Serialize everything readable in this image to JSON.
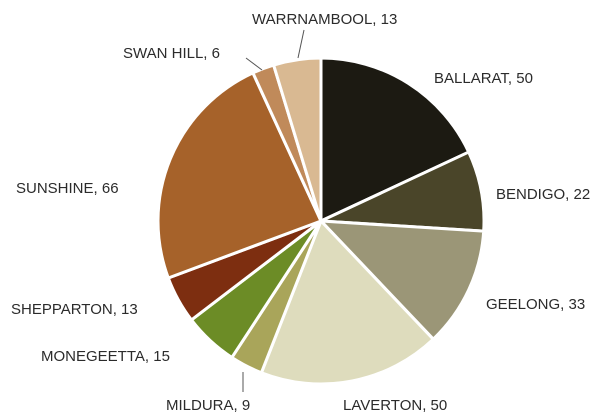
{
  "chart_data": {
    "type": "pie",
    "start_angle_deg": 0,
    "direction": "clockwise",
    "slices": [
      {
        "label": "BALLARAT, 50",
        "category": "BALLARAT",
        "value": 50,
        "color": "#1c1a12"
      },
      {
        "label": "BENDIGO, 22",
        "category": "BENDIGO",
        "value": 22,
        "color": "#4a4529"
      },
      {
        "label": "GEELONG, 33",
        "category": "GEELONG",
        "value": 33,
        "color": "#9b9677"
      },
      {
        "label": "LAVERTON, 50",
        "category": "LAVERTON",
        "value": 50,
        "color": "#dedcbd"
      },
      {
        "label": "MILDURA, 9",
        "category": "MILDURA",
        "value": 9,
        "color": "#a9a55a"
      },
      {
        "label": "MONEGEETTA, 15",
        "category": "MONEGEETTA",
        "value": 15,
        "color": "#6c8c26"
      },
      {
        "label": "SHEPPARTON, 13",
        "category": "SHEPPARTON",
        "value": 13,
        "color": "#7d2e10"
      },
      {
        "label": "SUNSHINE, 66",
        "category": "SUNSHINE",
        "value": 66,
        "color": "#a6622a"
      },
      {
        "label": "SWAN HILL, 6",
        "category": "SWAN HILL",
        "value": 6,
        "color": "#c08a5a"
      },
      {
        "label": "WARRNAMBOOL, 13",
        "category": "WARRNAMBOOL",
        "value": 13,
        "color": "#d9b992"
      }
    ]
  }
}
